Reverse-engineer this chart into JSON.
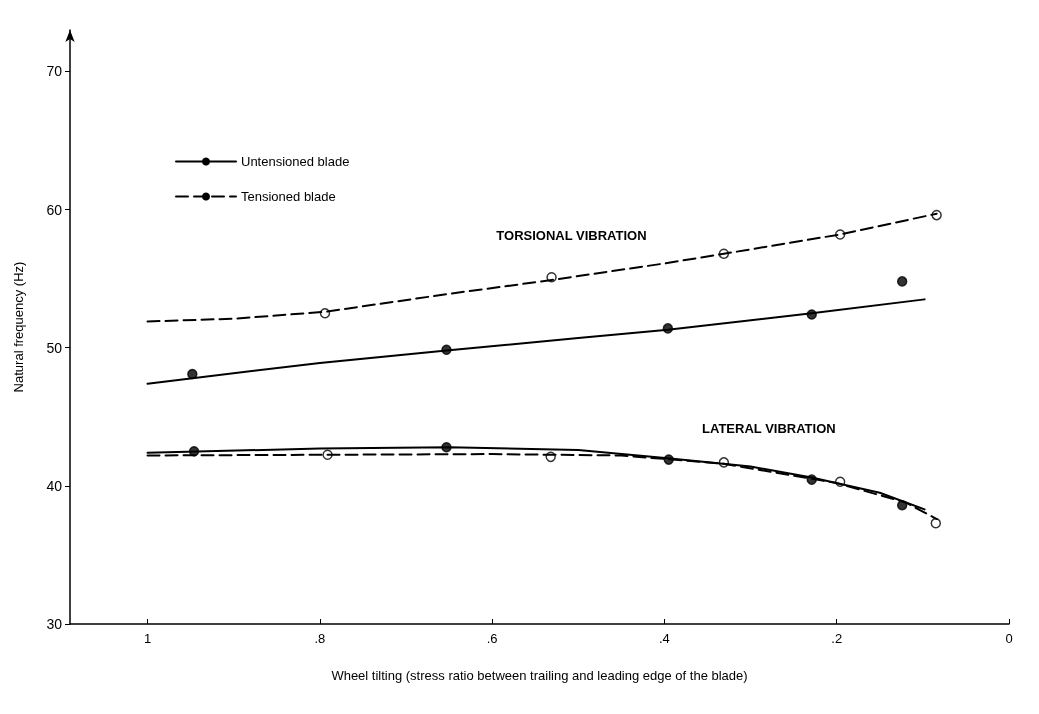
{
  "chart_data": {
    "type": "line",
    "xlabel": "Wheel tilting (stress ratio between trailing and leading edge of the blade)",
    "ylabel": "Natural frequency (Hz)",
    "xlim": [
      1.09,
      0
    ],
    "xticks": [
      1,
      {
        "value": 0.8,
        "label": ".8"
      },
      {
        "value": 0.6,
        "label": ".6"
      },
      {
        "value": 0.4,
        "label": ".4"
      },
      {
        "value": 0.2,
        "label": ".2"
      },
      0
    ],
    "ylim": [
      30,
      73
    ],
    "yticks": [
      30,
      40,
      50,
      60,
      70
    ],
    "grid": false,
    "legend": "top left",
    "annotations": [
      "TORSIONAL VIBRATION",
      "LATERAL VIBRATION"
    ],
    "series": [
      {
        "name": "Untensioned blade",
        "color": "#000000",
        "line_style": "solid",
        "marker": "none",
        "x": [
          1.0,
          0.8,
          0.653,
          0.5,
          0.396,
          0.229,
          0.098
        ],
        "values": [
          47.4,
          48.9,
          49.8,
          50.7,
          51.3,
          52.5,
          53.5
        ]
      },
      {
        "name": "Tensioned blade",
        "color": "#000000",
        "line_style": "dashed",
        "marker": "none",
        "x": [
          1.0,
          0.9,
          0.794,
          0.65,
          0.531,
          0.4,
          0.331,
          0.196,
          0.084
        ],
        "values": [
          51.9,
          52.1,
          52.6,
          53.9,
          54.9,
          56.1,
          56.8,
          58.2,
          59.7
        ]
      },
      {
        "color": "#000000",
        "line_style": "solid",
        "marker": "none",
        "x": [
          1.0,
          0.8,
          0.65,
          0.5,
          0.396,
          0.3,
          0.229,
          0.15,
          0.098
        ],
        "values": [
          42.4,
          42.7,
          42.8,
          42.6,
          42.0,
          41.4,
          40.6,
          39.5,
          38.3
        ]
      },
      {
        "color": "#000000",
        "line_style": "dashed",
        "marker": "none",
        "x": [
          1.0,
          0.8,
          0.6,
          0.45,
          0.331,
          0.2,
          0.12,
          0.084
        ],
        "values": [
          42.2,
          42.25,
          42.3,
          42.2,
          41.6,
          40.2,
          38.8,
          37.6
        ]
      },
      {
        "type": "scatter",
        "color": "#000000",
        "marker": "circle",
        "x": [
          0.948,
          0.653,
          0.396,
          0.229,
          0.124,
          0.946,
          0.653,
          0.395,
          0.229,
          0.124
        ],
        "values": [
          48.1,
          49.85,
          51.4,
          52.4,
          54.8,
          42.5,
          42.8,
          41.9,
          40.45,
          38.6
        ]
      },
      {
        "type": "scatter",
        "color": "#ffffff",
        "marker": "circle",
        "x": [
          0.794,
          0.531,
          0.331,
          0.196,
          0.084,
          0.791,
          0.532,
          0.331,
          0.196,
          0.085
        ],
        "values": [
          52.5,
          55.1,
          56.8,
          58.2,
          59.6,
          42.25,
          42.1,
          41.7,
          40.3,
          37.3
        ]
      }
    ]
  }
}
